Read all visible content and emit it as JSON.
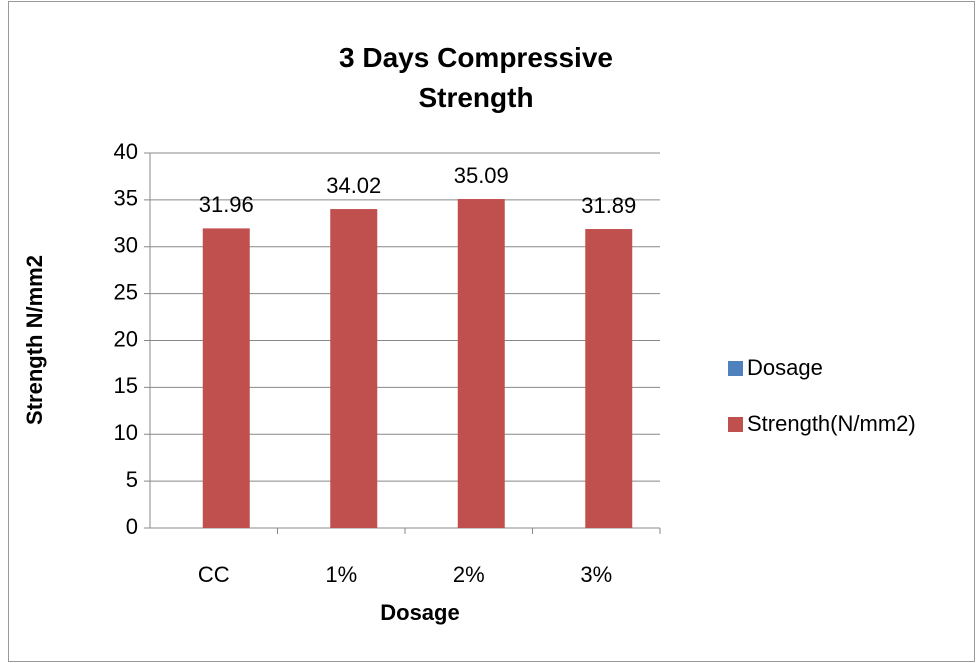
{
  "chart_data": {
    "type": "bar",
    "title": "3 Days Compressive Strength",
    "x_label": "Dosage",
    "y_label": "Strength N/mm2",
    "categories": [
      "CC",
      "1%",
      "2%",
      "3%"
    ],
    "series": [
      {
        "name": "Dosage",
        "color": "#4f81bd",
        "values": [
          null,
          null,
          null,
          null
        ]
      },
      {
        "name": "Strength(N/mm2)",
        "color": "#c0504d",
        "values": [
          31.96,
          34.02,
          35.09,
          31.89
        ]
      }
    ],
    "ylim": [
      0,
      40
    ],
    "yticks": [
      0,
      5,
      10,
      15,
      20,
      25,
      30,
      35,
      40
    ],
    "grid": true,
    "legend": "right",
    "data_labels": true
  }
}
